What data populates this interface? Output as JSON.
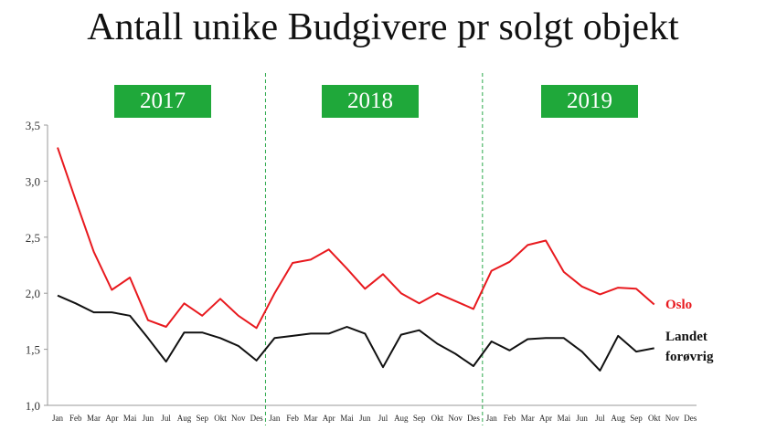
{
  "chart_data": {
    "type": "line",
    "title": "Antall unike Budgivere pr solgt objekt",
    "xlabel": "",
    "ylabel": "",
    "ylim": [
      1.0,
      3.5
    ],
    "yticks": [
      "1,0",
      "1,5",
      "2,0",
      "2,5",
      "3,0",
      "3,5"
    ],
    "grid": false,
    "years": [
      "2017",
      "2018",
      "2019"
    ],
    "categories": [
      "Jan",
      "Feb",
      "Mar",
      "Apr",
      "Mai",
      "Jun",
      "Jul",
      "Aug",
      "Sep",
      "Okt",
      "Nov",
      "Des",
      "Jan",
      "Feb",
      "Mar",
      "Apr",
      "Mai",
      "Jun",
      "Jul",
      "Aug",
      "Sep",
      "Okt",
      "Nov",
      "Des",
      "Jan",
      "Feb",
      "Mar",
      "Apr",
      "Mai",
      "Jun",
      "Jul",
      "Aug",
      "Sep",
      "Okt",
      "Nov",
      "Des"
    ],
    "series": [
      {
        "name": "Oslo",
        "label": "Oslo",
        "color": "#e8191e",
        "values": [
          3.3,
          2.83,
          2.37,
          2.03,
          2.14,
          1.76,
          1.7,
          1.91,
          1.8,
          1.95,
          1.8,
          1.69,
          2.0,
          2.27,
          2.3,
          2.39,
          2.22,
          2.04,
          2.17,
          2.0,
          1.91,
          2.0,
          1.93,
          1.86,
          2.2,
          2.28,
          2.43,
          2.47,
          2.19,
          2.06,
          1.99,
          2.05,
          2.04,
          1.9,
          null,
          null
        ]
      },
      {
        "name": "Landet forøvrig",
        "label_lines": [
          "Landet",
          "forøvrig"
        ],
        "color": "#111111",
        "values": [
          1.98,
          1.91,
          1.83,
          1.83,
          1.8,
          1.6,
          1.39,
          1.65,
          1.65,
          1.6,
          1.53,
          1.4,
          1.6,
          1.62,
          1.64,
          1.64,
          1.7,
          1.64,
          1.34,
          1.63,
          1.67,
          1.55,
          1.46,
          1.35,
          1.57,
          1.49,
          1.59,
          1.6,
          1.6,
          1.48,
          1.31,
          1.62,
          1.48,
          1.51,
          null,
          null
        ]
      }
    ]
  }
}
